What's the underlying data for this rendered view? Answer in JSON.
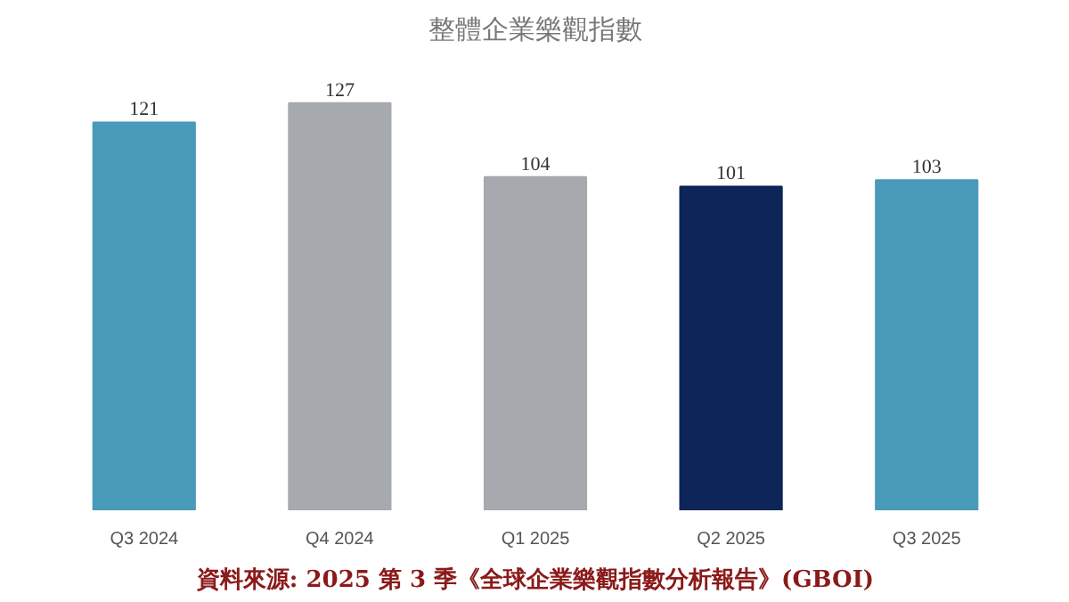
{
  "chart_data": {
    "type": "bar",
    "title": "整體企業樂觀指數",
    "categories": [
      "Q3 2024",
      "Q4 2024",
      "Q1 2025",
      "Q2 2025",
      "Q3 2025"
    ],
    "values": [
      121,
      127,
      104,
      101,
      103
    ],
    "colors": [
      "#4a9aba",
      "#a6a9ad",
      "#a6a9ad",
      "#0d2559",
      "#4a9aba"
    ],
    "data_labels": true,
    "grid": false,
    "annotations": [
      "資料來源: 2025 第 3 季《全球企業樂觀指數分析報告》(GBOI)"
    ]
  }
}
